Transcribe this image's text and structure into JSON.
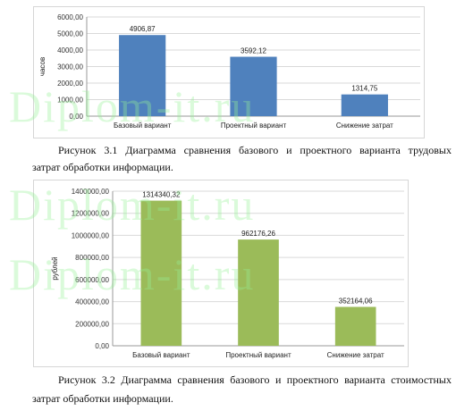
{
  "watermark": "Diplom-it.ru",
  "captions": {
    "fig1_line1": "Рисунок 3.1 Диаграмма сравнения базового и проектного варианта трудовых",
    "fig1_line2": "затрат обработки информации.",
    "fig2_line1": "Рисунок 3.2 Диаграмма сравнения базового и проектного варианта стоимостных",
    "fig2_line2": "затрат обработки информации."
  },
  "chart_data": [
    {
      "type": "bar",
      "categories": [
        "Базовый вариант",
        "Проектный вариант",
        "Снижение затрат"
      ],
      "values": [
        4906.87,
        3592.12,
        1314.75
      ],
      "labels": [
        "4906,87",
        "3592,12",
        "1314,75"
      ],
      "ylabel": "часов",
      "ylim": [
        0,
        6000
      ],
      "yticks": [
        "0,00",
        "1000,00",
        "2000,00",
        "3000,00",
        "4000,00",
        "5000,00",
        "6000,00"
      ],
      "grid": true,
      "color": "#4f81bd"
    },
    {
      "type": "bar",
      "categories": [
        "Базовый вариант",
        "Проектный вариант",
        "Снижение затрат"
      ],
      "values": [
        1314340.32,
        962176.26,
        352164.06
      ],
      "labels": [
        "1314340,32",
        "962176,26",
        "352164,06"
      ],
      "ylabel": "рублей",
      "ylim": [
        0,
        1400000
      ],
      "yticks": [
        "0,00",
        "200000,00",
        "400000,00",
        "600000,00",
        "800000,00",
        "1000000,00",
        "1200000,00",
        "1400000,00"
      ],
      "grid": true,
      "color": "#9bbb59"
    }
  ]
}
